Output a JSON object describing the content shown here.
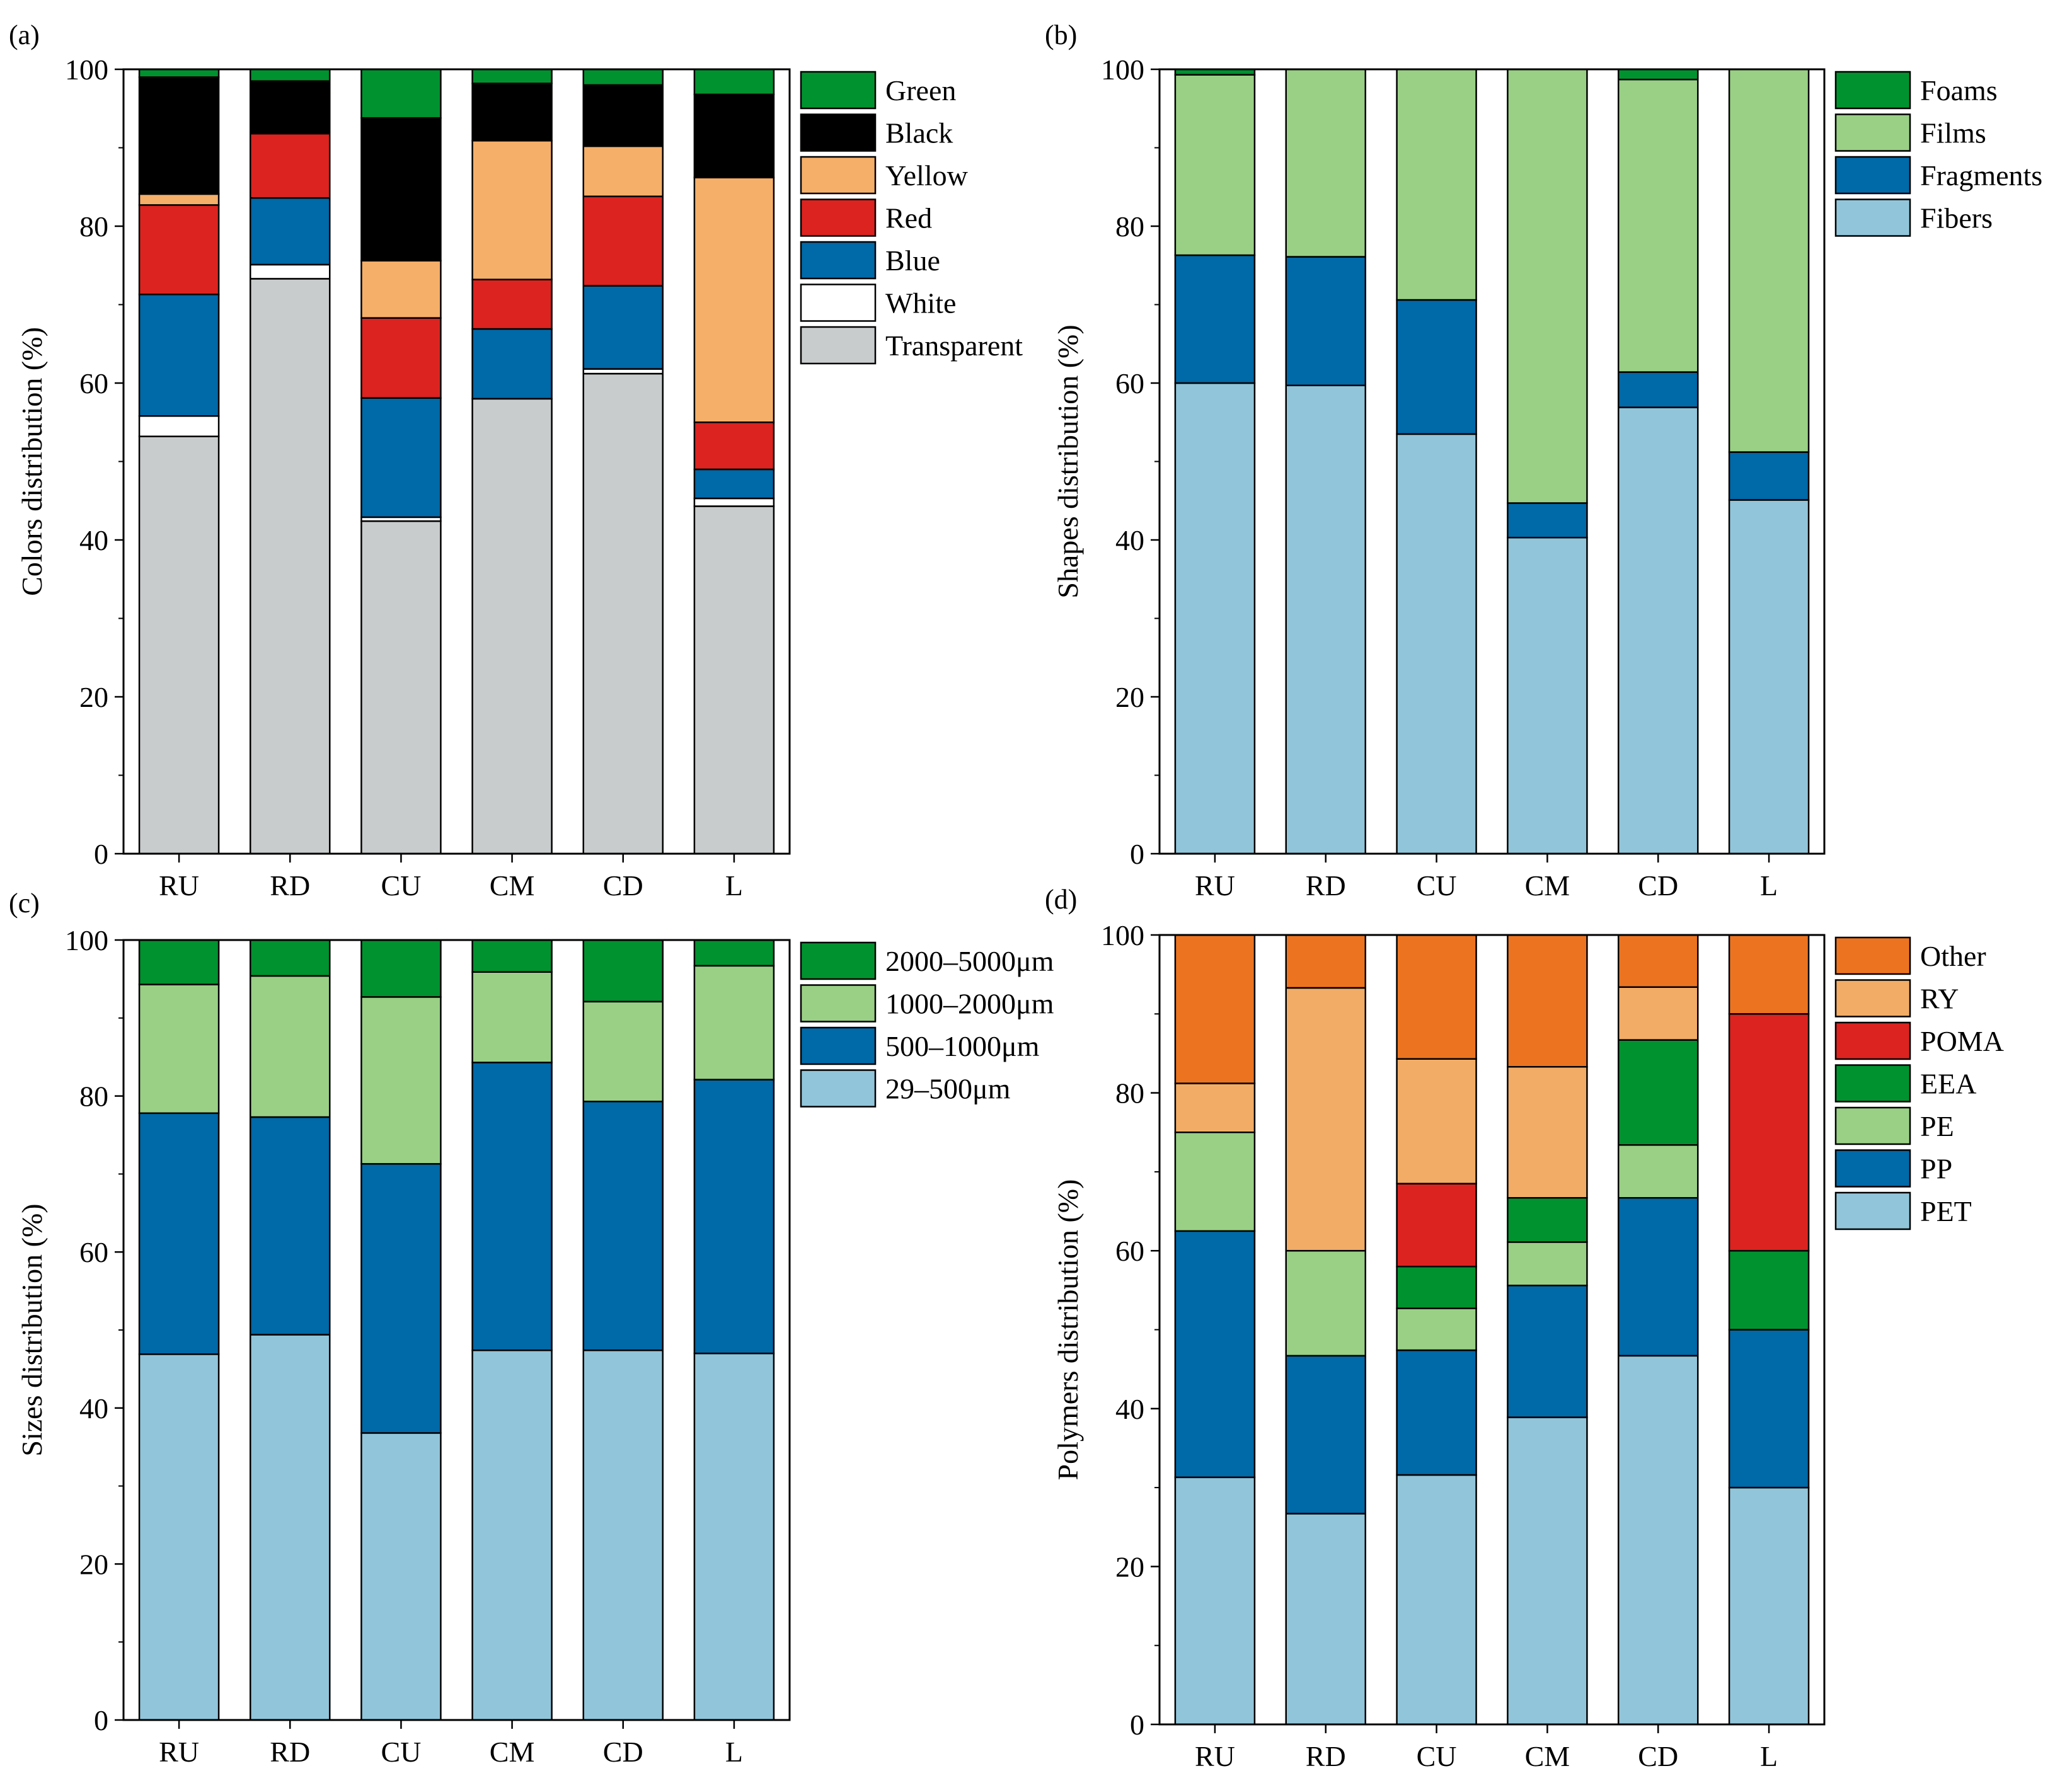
{
  "chart_data": [
    {
      "panel": "(a)",
      "type": "bar",
      "stacked": true,
      "title": "",
      "xlabel": "",
      "ylabel": "Colors distribution (%)",
      "ylim": [
        0,
        100
      ],
      "yticks": [
        0,
        20,
        40,
        60,
        80,
        100
      ],
      "categories": [
        "RU",
        "RD",
        "CU",
        "CM",
        "CD",
        "L"
      ],
      "legend_position": "top-right",
      "series": [
        {
          "name": "Transparent",
          "color": "#C9CCCD",
          "values": [
            53.2,
            73.3,
            42.4,
            58.0,
            61.2,
            44.3
          ]
        },
        {
          "name": "White",
          "color": "#FFFFFF",
          "values": [
            2.6,
            1.8,
            0.5,
            0.0,
            0.6,
            1.0
          ]
        },
        {
          "name": "Blue",
          "color": "#0069A8",
          "values": [
            15.5,
            8.5,
            15.2,
            8.9,
            10.6,
            3.7
          ]
        },
        {
          "name": "Red",
          "color": "#DC231F",
          "values": [
            11.4,
            8.2,
            10.2,
            6.3,
            11.4,
            6.0
          ]
        },
        {
          "name": "Yellow",
          "color": "#F5AF69",
          "values": [
            1.4,
            0.0,
            7.3,
            17.7,
            6.4,
            31.2
          ]
        },
        {
          "name": "Black",
          "color": "#000000",
          "values": [
            14.9,
            6.7,
            18.2,
            7.3,
            7.8,
            10.6
          ]
        },
        {
          "name": "Green",
          "color": "#00922F",
          "values": [
            1.0,
            1.5,
            6.2,
            1.8,
            2.0,
            3.2
          ]
        }
      ]
    },
    {
      "panel": "(b)",
      "type": "bar",
      "stacked": true,
      "title": "",
      "xlabel": "",
      "ylabel": "Shapes distribution (%)",
      "ylim": [
        0,
        100
      ],
      "yticks": [
        0,
        20,
        40,
        60,
        80,
        100
      ],
      "categories": [
        "RU",
        "RD",
        "CU",
        "CM",
        "CD",
        "L"
      ],
      "legend_position": "top-right",
      "series": [
        {
          "name": "Fibers",
          "color": "#91C5DA",
          "values": [
            60.0,
            59.7,
            53.5,
            40.3,
            56.9,
            45.1
          ]
        },
        {
          "name": "Fragments",
          "color": "#0069A8",
          "values": [
            16.3,
            16.4,
            17.1,
            4.4,
            4.5,
            6.1
          ]
        },
        {
          "name": "Films",
          "color": "#99D085",
          "values": [
            23.0,
            23.9,
            29.4,
            55.3,
            37.3,
            48.8
          ]
        },
        {
          "name": "Foams",
          "color": "#00922F",
          "values": [
            0.7,
            0.0,
            0.0,
            0.0,
            1.3,
            0.0
          ]
        }
      ]
    },
    {
      "panel": "(c)",
      "type": "bar",
      "stacked": true,
      "title": "",
      "xlabel": "",
      "ylabel": "Sizes distribution (%)",
      "ylim": [
        0,
        100
      ],
      "yticks": [
        0,
        20,
        40,
        60,
        80,
        100
      ],
      "categories": [
        "RU",
        "RD",
        "CU",
        "CM",
        "CD",
        "L"
      ],
      "legend_position": "top-right",
      "series": [
        {
          "name": "29–500μm",
          "color": "#91C5DA",
          "values": [
            46.9,
            49.4,
            36.8,
            47.4,
            47.4,
            47.0
          ]
        },
        {
          "name": "500–1000μm",
          "color": "#0069A8",
          "values": [
            30.9,
            27.9,
            34.5,
            36.9,
            31.9,
            35.1
          ]
        },
        {
          "name": "1000–2000μm",
          "color": "#99D085",
          "values": [
            16.5,
            18.1,
            21.4,
            11.6,
            12.8,
            14.6
          ]
        },
        {
          "name": "2000–5000μm",
          "color": "#00922F",
          "values": [
            5.7,
            4.6,
            7.3,
            4.1,
            7.9,
            3.3
          ]
        }
      ]
    },
    {
      "panel": "(d)",
      "type": "bar",
      "stacked": true,
      "title": "",
      "xlabel": "",
      "ylabel": "Polymers distribution (%)",
      "ylim": [
        0,
        100
      ],
      "yticks": [
        0,
        20,
        40,
        60,
        80,
        100
      ],
      "categories": [
        "RU",
        "RD",
        "CU",
        "CM",
        "CD",
        "L"
      ],
      "legend_position": "top-right",
      "series": [
        {
          "name": "PET",
          "color": "#91C5DA",
          "values": [
            31.3,
            26.7,
            31.6,
            38.9,
            46.7,
            30.0
          ]
        },
        {
          "name": "PP",
          "color": "#0069A8",
          "values": [
            31.2,
            20.0,
            15.8,
            16.7,
            20.0,
            20.0
          ]
        },
        {
          "name": "PE",
          "color": "#99D085",
          "values": [
            12.5,
            13.3,
            5.3,
            5.5,
            6.7,
            0.0
          ]
        },
        {
          "name": "EEA",
          "color": "#00922F",
          "values": [
            0.0,
            0.0,
            5.3,
            5.6,
            13.3,
            10.0
          ]
        },
        {
          "name": "POMA",
          "color": "#DC231F",
          "values": [
            0.0,
            0.0,
            10.5,
            0.0,
            0.0,
            30.0
          ]
        },
        {
          "name": "RY",
          "color": "#F2AC66",
          "values": [
            6.2,
            33.3,
            15.8,
            16.6,
            6.7,
            0.0
          ]
        },
        {
          "name": "Other",
          "color": "#EC7420",
          "values": [
            18.8,
            6.7,
            15.7,
            16.7,
            6.6,
            10.0
          ]
        }
      ]
    }
  ]
}
